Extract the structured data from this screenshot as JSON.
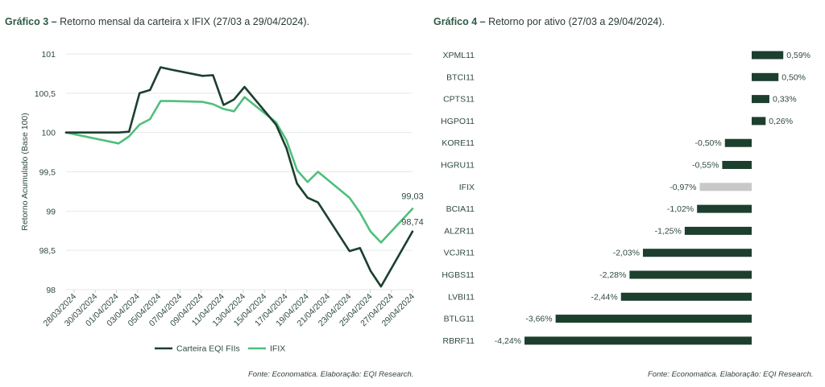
{
  "chart1": {
    "title_bold": "Gráfico 3 –",
    "title_rest": " Retorno mensal da carteira x IFIX (27/03 a 29/04/2024).",
    "source": "Fonte: Economatica. Elaboração: EQI Research.",
    "colors": {
      "carteira": "#1c3f2e",
      "ifix": "#4fbf7c"
    }
  },
  "chart2": {
    "title_bold": "Gráfico 4 –",
    "title_rest": " Retorno por ativo  (27/03 a 29/04/2024).",
    "source": "Fonte: Economatica. Elaboração: EQI Research.",
    "colors": {
      "bar": "#1c3f2e",
      "highlight": "#c8c8c8"
    }
  },
  "chart_data": [
    {
      "type": "line",
      "title": "Retorno mensal da carteira x IFIX (27/03 a 29/04/2024).",
      "ylabel": "Retorno Acumulado (Base 100)",
      "ylim": [
        98,
        101
      ],
      "yticks": [
        "98",
        "98,5",
        "99",
        "99,5",
        "100",
        "100,5",
        "101"
      ],
      "ytick_values": [
        98,
        98.5,
        99,
        99.5,
        100,
        100.5,
        101
      ],
      "xtick_labels": [
        "28/03/2024",
        "30/03/2024",
        "01/04/2024",
        "03/04/2024",
        "05/04/2024",
        "07/04/2024",
        "09/04/2024",
        "11/04/2024",
        "13/04/2024",
        "15/04/2024",
        "17/04/2024",
        "19/04/2024",
        "21/04/2024",
        "23/04/2024",
        "25/04/2024",
        "27/04/2024",
        "29/04/2024"
      ],
      "grid": true,
      "legend_position": "bottom",
      "x": [
        "2024-03-27",
        "2024-04-01",
        "2024-04-02",
        "2024-04-03",
        "2024-04-04",
        "2024-04-05",
        "2024-04-06",
        "2024-04-09",
        "2024-04-10",
        "2024-04-11",
        "2024-04-12",
        "2024-04-13",
        "2024-04-16",
        "2024-04-17",
        "2024-04-18",
        "2024-04-19",
        "2024-04-20",
        "2024-04-23",
        "2024-04-24",
        "2024-04-25",
        "2024-04-26",
        "2024-04-29"
      ],
      "series": [
        {
          "name": "Carteira EQI FIIs",
          "values": [
            100,
            100,
            100.01,
            100.5,
            100.54,
            100.83,
            100.8,
            100.72,
            100.73,
            100.35,
            100.42,
            100.58,
            100.1,
            99.8,
            99.35,
            99.17,
            99.11,
            98.49,
            98.53,
            98.24,
            98.04,
            98.74
          ]
        },
        {
          "name": "IFIX",
          "values": [
            100,
            99.86,
            99.95,
            100.1,
            100.17,
            100.4,
            100.4,
            100.39,
            100.36,
            100.3,
            100.27,
            100.45,
            100.13,
            99.9,
            99.52,
            99.37,
            99.5,
            99.17,
            98.98,
            98.74,
            98.6,
            99.03
          ]
        }
      ],
      "end_labels": {
        "Carteira EQI FIIs": "98,74",
        "IFIX": "99,03"
      }
    },
    {
      "type": "bar",
      "orientation": "horizontal",
      "title": "Retorno por ativo  (27/03 a 29/04/2024).",
      "categories": [
        "XPML11",
        "BTCI11",
        "CPTS11",
        "HGPO11",
        "KORE11",
        "HGRU11",
        "IFIX",
        "BCIA11",
        "ALZR11",
        "VCJR11",
        "HGBS11",
        "LVBI11",
        "BTLG11",
        "RBRF11"
      ],
      "values": [
        0.59,
        0.5,
        0.33,
        0.26,
        -0.5,
        -0.55,
        -0.97,
        -1.02,
        -1.25,
        -2.03,
        -2.28,
        -2.44,
        -3.66,
        -4.24
      ],
      "labels": [
        "0,59%",
        "0,50%",
        "0,33%",
        "0,26%",
        "-0,50%",
        "-0,55%",
        "-0,97%",
        "-1,02%",
        "-1,25%",
        "-2,03%",
        "-2,28%",
        "-2,44%",
        "-3,66%",
        "-4,24%"
      ],
      "highlight": "IFIX"
    }
  ]
}
